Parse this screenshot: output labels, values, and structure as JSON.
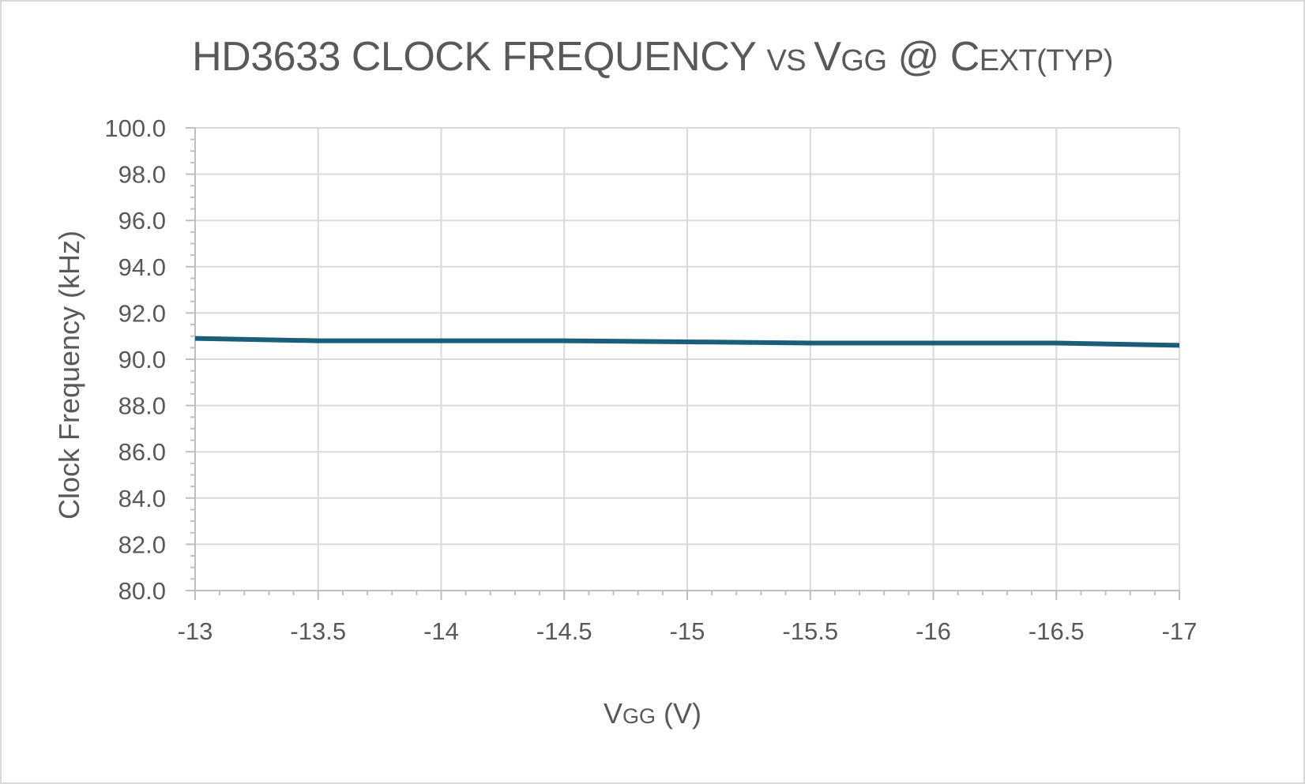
{
  "chart_data": {
    "type": "line",
    "title": {
      "parts": [
        {
          "text": "HD3633 CLOCK FREQUENCY ",
          "small": false
        },
        {
          "text": "VS ",
          "small": true
        },
        {
          "text": "V",
          "small": false
        },
        {
          "text": "GG",
          "small": true
        },
        {
          "text": " @ C",
          "small": false
        },
        {
          "text": "EXT(TYP)",
          "small": true
        }
      ]
    },
    "xlabel": {
      "parts": [
        {
          "text": "V",
          "small": false
        },
        {
          "text": "GG",
          "small": true
        },
        {
          "text": " (V)",
          "small": false
        }
      ]
    },
    "ylabel": "Clock Frequency (kHz)",
    "xlim": [
      -13,
      -17
    ],
    "ylim": [
      80,
      100
    ],
    "x_ticks": [
      "-13",
      "-13.5",
      "-14",
      "-14.5",
      "-15",
      "-15.5",
      "-16",
      "-16.5",
      "-17"
    ],
    "y_ticks": [
      "80.0",
      "82.0",
      "84.0",
      "86.0",
      "88.0",
      "90.0",
      "92.0",
      "94.0",
      "96.0",
      "98.0",
      "100.0"
    ],
    "grid": true,
    "series": [
      {
        "x": [
          -13,
          -13.5,
          -14,
          -14.5,
          -15,
          -15.5,
          -16,
          -16.5,
          -17
        ],
        "values": [
          90.9,
          90.8,
          90.8,
          90.8,
          90.75,
          90.7,
          90.7,
          90.7,
          90.6
        ],
        "color": "#1a5e7a"
      }
    ],
    "grid_color": "#d9d9d9",
    "axis_color": "#bfbfbf",
    "text_color": "#595959"
  }
}
